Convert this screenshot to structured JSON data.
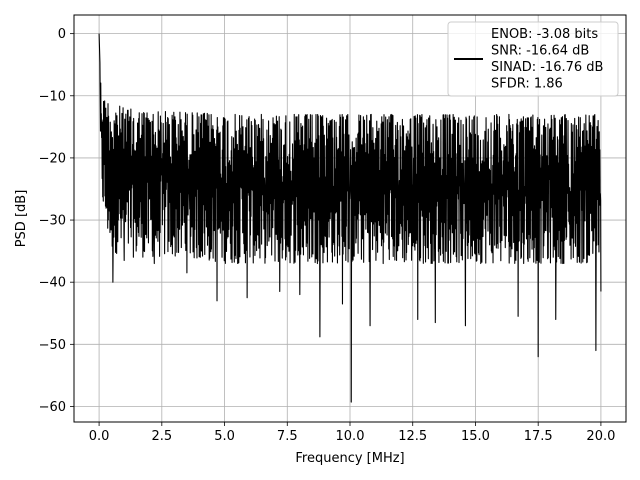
{
  "chart_data": {
    "type": "line",
    "title": "",
    "xlabel": "Frequency [MHz]",
    "ylabel": "PSD [dB]",
    "xlim": [
      -1,
      21
    ],
    "ylim": [
      -62.5,
      3
    ],
    "x_ticks": [
      0.0,
      2.5,
      5.0,
      7.5,
      10.0,
      12.5,
      15.0,
      17.5,
      20.0
    ],
    "x_tick_labels": [
      "0.0",
      "2.5",
      "5.0",
      "7.5",
      "10.0",
      "12.5",
      "15.0",
      "17.5",
      "20.0"
    ],
    "y_ticks": [
      0,
      -10,
      -20,
      -30,
      -40,
      -50,
      -60
    ],
    "y_tick_labels": [
      "0",
      "−10",
      "−20",
      "−30",
      "−40",
      "−50",
      "−60"
    ],
    "grid": true,
    "legend_position": "top-right",
    "legend_lines": [
      "ENOB: -3.08 bits",
      "SNR: -16.64 dB",
      "SINAD: -16.76 dB",
      "SFDR: 1.86"
    ],
    "series_color": "#000000",
    "series": [
      {
        "name": "ENOB: -3.08 bits",
        "band_x": [
          0.0,
          0.05,
          0.1,
          0.15,
          0.2,
          0.3,
          0.5,
          1.0,
          2.0,
          3.0,
          5.0,
          7.5,
          10.0,
          12.5,
          15.0,
          17.5,
          20.0
        ],
        "band_upper": [
          0.0,
          -7.0,
          -8.5,
          -9.5,
          -10.5,
          -10.5,
          -11.0,
          -12.0,
          -12.5,
          -12.5,
          -13.0,
          -13.0,
          -13.0,
          -13.0,
          -13.0,
          -13.0,
          -13.0
        ],
        "band_lower": [
          -12.0,
          -20.0,
          -24.0,
          -28.0,
          -30.0,
          -32.0,
          -35.0,
          -36.0,
          -36.0,
          -36.0,
          -37.0,
          -37.0,
          -37.0,
          -37.0,
          -37.0,
          -37.0,
          -37.0
        ],
        "dips": [
          {
            "x": 0.55,
            "y": -40.0
          },
          {
            "x": 1.0,
            "y": -36.5
          },
          {
            "x": 2.2,
            "y": -37.0
          },
          {
            "x": 3.5,
            "y": -38.5
          },
          {
            "x": 4.7,
            "y": -43.0
          },
          {
            "x": 5.9,
            "y": -42.5
          },
          {
            "x": 7.2,
            "y": -41.5
          },
          {
            "x": 8.0,
            "y": -42.0
          },
          {
            "x": 8.8,
            "y": -48.8
          },
          {
            "x": 9.7,
            "y": -43.5
          },
          {
            "x": 10.05,
            "y": -59.3
          },
          {
            "x": 10.8,
            "y": -47.0
          },
          {
            "x": 12.7,
            "y": -46.0
          },
          {
            "x": 13.4,
            "y": -46.5
          },
          {
            "x": 14.6,
            "y": -47.0
          },
          {
            "x": 16.7,
            "y": -45.5
          },
          {
            "x": 17.5,
            "y": -52.0
          },
          {
            "x": 18.2,
            "y": -46.0
          },
          {
            "x": 19.8,
            "y": -51.0
          },
          {
            "x": 20.0,
            "y": -41.5
          }
        ]
      }
    ]
  }
}
